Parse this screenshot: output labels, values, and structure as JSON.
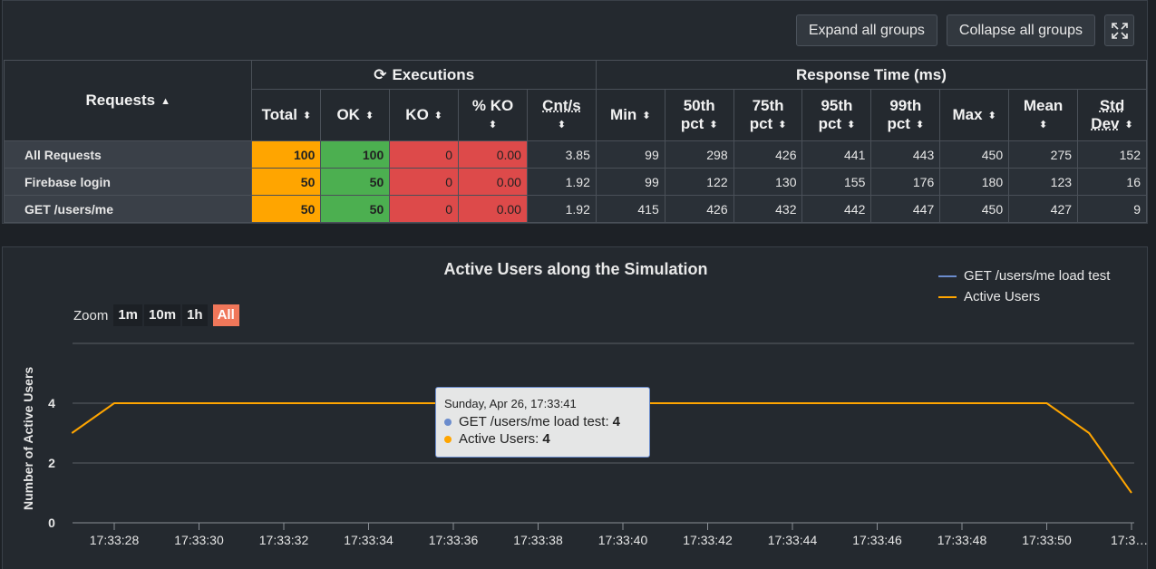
{
  "toolbar": {
    "expand_label": "Expand all groups",
    "collapse_label": "Collapse all groups",
    "fullscreen_icon": "expand-icon"
  },
  "table": {
    "requests_header": "Requests",
    "executions_header": "Executions",
    "response_time_header": "Response Time (ms)",
    "columns": {
      "total": "Total",
      "ok": "OK",
      "ko": "KO",
      "pct_ko": "% KO",
      "cnt_s": "Cnt/s",
      "min": "Min",
      "p50_a": "50th",
      "p50_b": "pct",
      "p75_a": "75th",
      "p75_b": "pct",
      "p95_a": "95th",
      "p95_b": "pct",
      "p99_a": "99th",
      "p99_b": "pct",
      "max": "Max",
      "mean": "Mean",
      "std_a": "Std",
      "std_b": "Dev"
    },
    "rows": [
      {
        "name": "All Requests",
        "total": "100",
        "ok": "100",
        "ko": "0",
        "pct_ko": "0.00",
        "cnt_s": "3.85",
        "min": "99",
        "p50": "298",
        "p75": "426",
        "p95": "441",
        "p99": "443",
        "max": "450",
        "mean": "275",
        "std": "152"
      },
      {
        "name": "Firebase login",
        "total": "50",
        "ok": "50",
        "ko": "0",
        "pct_ko": "0.00",
        "cnt_s": "1.92",
        "min": "99",
        "p50": "122",
        "p75": "130",
        "p95": "155",
        "p99": "176",
        "max": "180",
        "mean": "123",
        "std": "16"
      },
      {
        "name": "GET /users/me",
        "total": "50",
        "ok": "50",
        "ko": "0",
        "pct_ko": "0.00",
        "cnt_s": "1.92",
        "min": "415",
        "p50": "426",
        "p75": "432",
        "p95": "442",
        "p99": "447",
        "max": "450",
        "mean": "427",
        "std": "9"
      }
    ],
    "colors": {
      "total": "#ffa500",
      "ok": "#4caf50",
      "ko": "#dd4a4a"
    }
  },
  "chart": {
    "zoom_label": "Zoom",
    "zoom_options": [
      "1m",
      "10m",
      "1h",
      "All"
    ],
    "zoom_selected": "All",
    "tooltip": {
      "date": "Sunday, Apr 26, 17:33:41",
      "rows": [
        {
          "label": "GET /users/me load test: ",
          "value": "4",
          "color": "#6b8ccd"
        },
        {
          "label": "Active Users: ",
          "value": "4",
          "color": "#ffa500"
        }
      ]
    }
  },
  "chart_data": {
    "type": "line",
    "title": "Active Users along the Simulation",
    "ylabel": "Number of Active Users",
    "xlabel": "",
    "ylim": [
      0,
      6
    ],
    "yticks": [
      "0",
      "2",
      "4"
    ],
    "xticks": [
      "17:33:28",
      "17:33:30",
      "17:33:32",
      "17:33:34",
      "17:33:36",
      "17:33:38",
      "17:33:40",
      "17:33:42",
      "17:33:44",
      "17:33:46",
      "17:33:48",
      "17:33:50",
      "17:3…"
    ],
    "legend_placement": "top-right",
    "series": [
      {
        "name": "GET /users/me load test",
        "color": "#6b8ccd",
        "x": [],
        "y": []
      },
      {
        "name": "Active Users",
        "color": "#ffa500",
        "x": [
          "17:33:27",
          "17:33:28",
          "17:33:50",
          "17:33:51",
          "17:33:52"
        ],
        "y": [
          3,
          4,
          4,
          3,
          1
        ]
      }
    ]
  }
}
